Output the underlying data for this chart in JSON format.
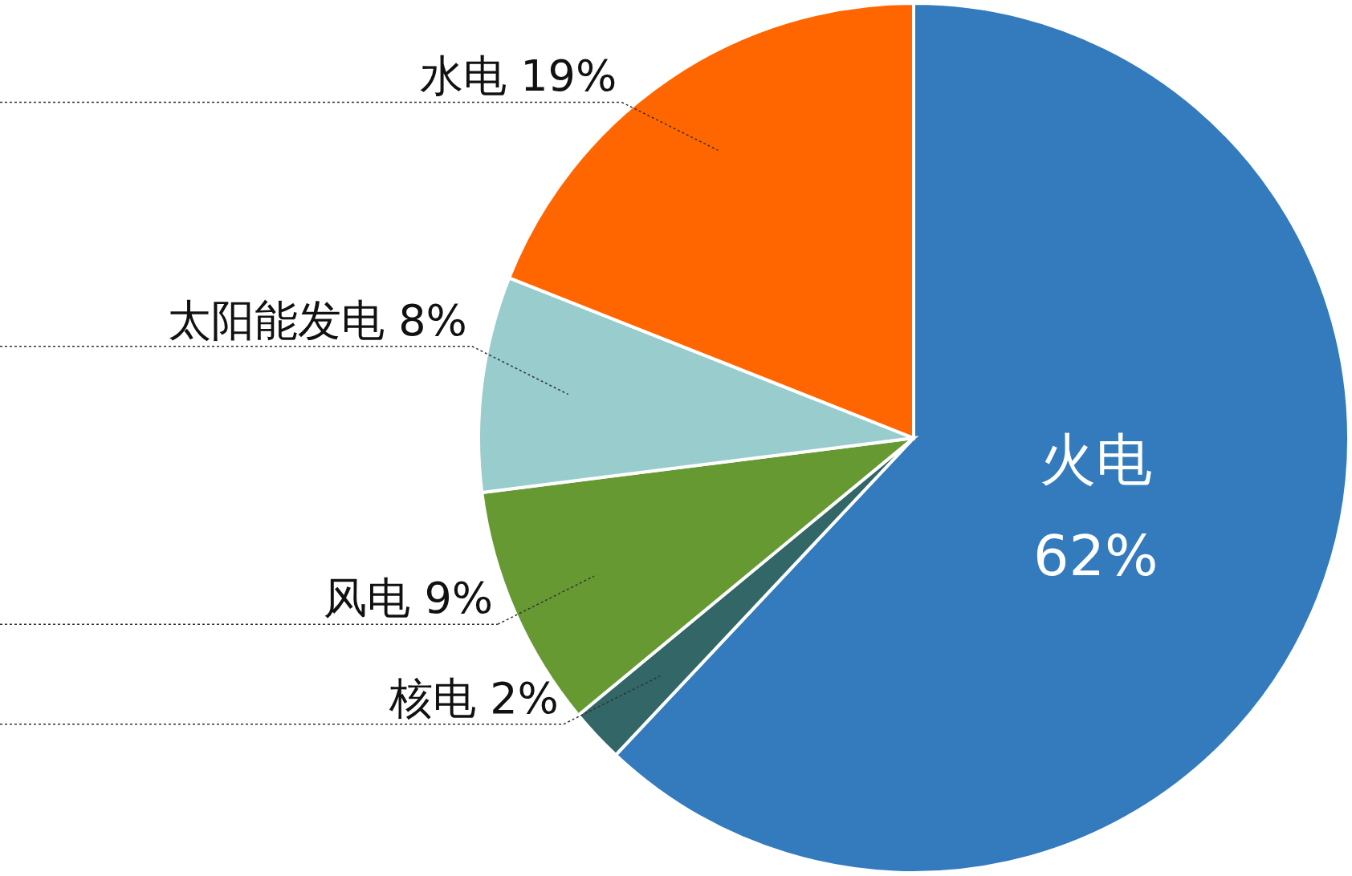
{
  "chart_data": {
    "type": "pie",
    "categories": [
      "火电",
      "核电",
      "风电",
      "太阳能发电",
      "水电"
    ],
    "values": [
      62,
      2,
      9,
      8,
      19
    ],
    "colors": [
      "#337bbd",
      "#336666",
      "#679933",
      "#99cccc",
      "#ff6600"
    ],
    "value_labels": [
      "62%",
      "2%",
      "9%",
      "8%",
      "19%"
    ]
  }
}
